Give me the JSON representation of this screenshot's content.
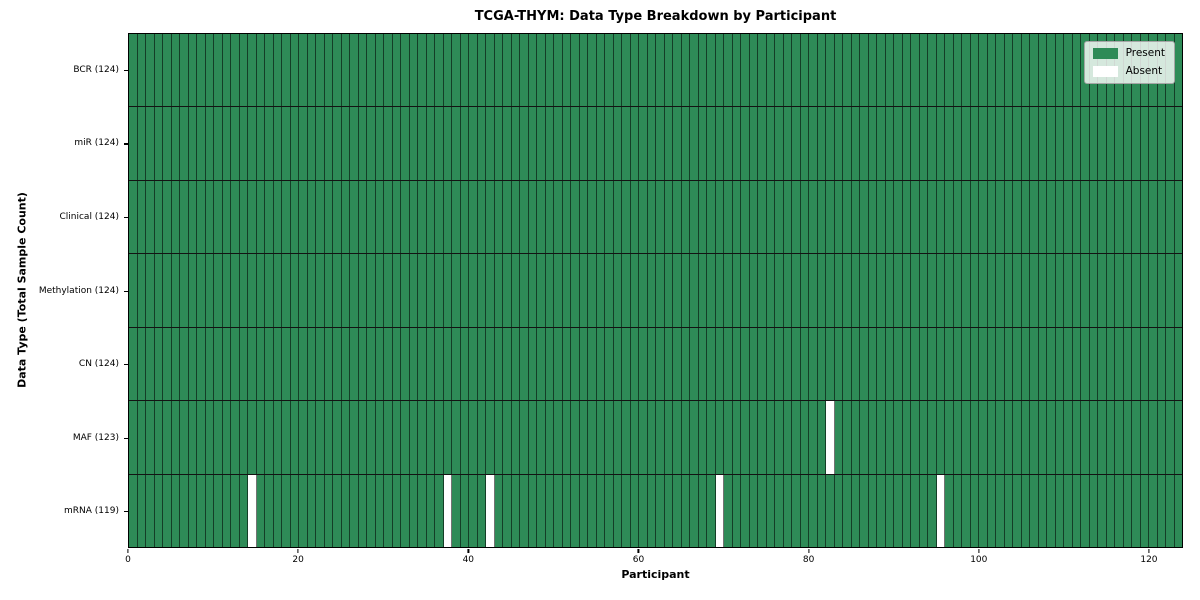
{
  "title": "TCGA-THYM: Data Type Breakdown by Participant",
  "legend": {
    "present_label": "Present",
    "absent_label": "Absent",
    "position": "upper right"
  },
  "axes": {
    "xlabel": "Participant",
    "ylabel": "Data Type (Total Sample Count)"
  },
  "colors": {
    "present": "#2e8b57",
    "absent": "#ffffff",
    "cell_border": "rgba(0,0,0,0.55)",
    "row_divider": "#131313",
    "plot_border": "#000000",
    "legend_bg": "rgba(255,255,255,0.8)",
    "legend_border": "#a6a6a6"
  },
  "chart_data": {
    "type": "heatmap",
    "title": "TCGA-THYM: Data Type Breakdown by Participant",
    "xlabel": "Participant",
    "ylabel": "Data Type (Total Sample Count)",
    "legend": [
      "Present",
      "Absent"
    ],
    "legend_position": "upper right",
    "grid": false,
    "n_participants": 124,
    "xlim": [
      0,
      124
    ],
    "x_ticks": [
      0,
      20,
      40,
      60,
      80,
      100,
      120
    ],
    "rows": [
      {
        "data_type": "BCR",
        "label": "BCR (124)",
        "total_samples": 124,
        "absent_participants": []
      },
      {
        "data_type": "miR",
        "label": "miR (124)",
        "total_samples": 124,
        "absent_participants": []
      },
      {
        "data_type": "Clinical",
        "label": "Clinical (124)",
        "total_samples": 124,
        "absent_participants": []
      },
      {
        "data_type": "Methylation",
        "label": "Methylation (124)",
        "total_samples": 124,
        "absent_participants": []
      },
      {
        "data_type": "CN",
        "label": "CN (124)",
        "total_samples": 124,
        "absent_participants": []
      },
      {
        "data_type": "MAF",
        "label": "MAF (123)",
        "total_samples": 123,
        "absent_participants": [
          82
        ]
      },
      {
        "data_type": "mRNA",
        "label": "mRNA (119)",
        "total_samples": 119,
        "absent_participants": [
          14,
          37,
          42,
          69,
          95
        ]
      }
    ]
  }
}
